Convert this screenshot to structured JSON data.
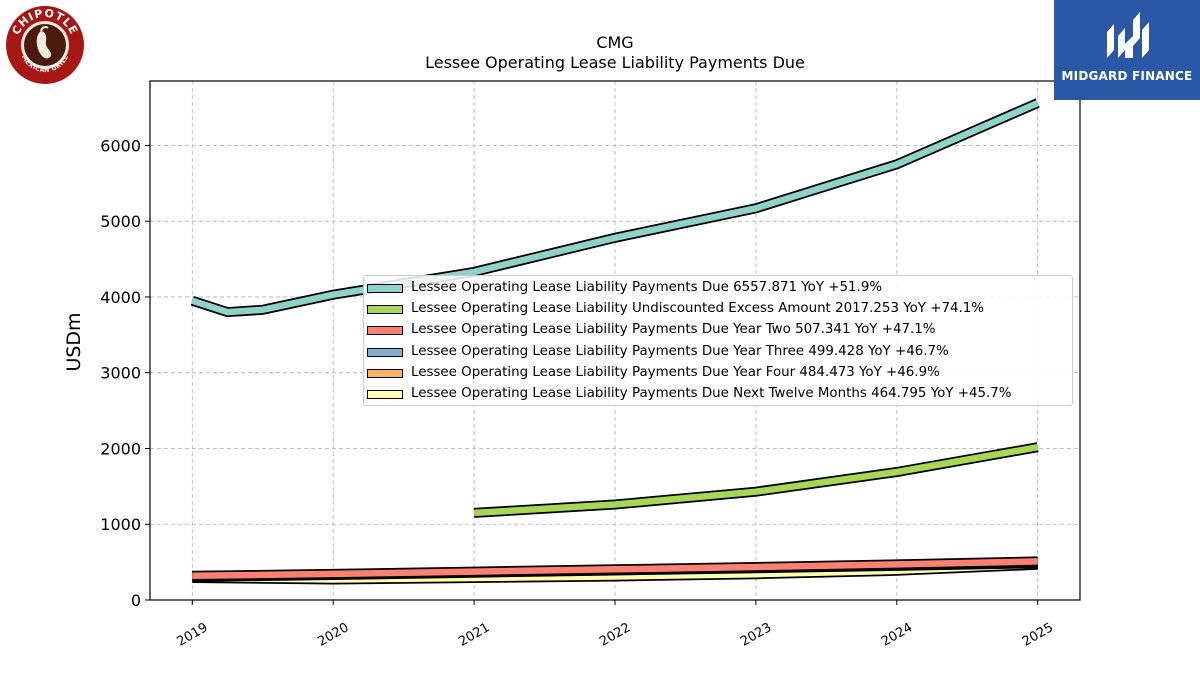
{
  "chart_data": {
    "type": "line",
    "title": "CMG",
    "subtitle": "Lessee Operating Lease Liability Payments Due",
    "ylabel": "USDm",
    "xlabel": "",
    "ylim": [
      0,
      6850
    ],
    "xlim": [
      2018.7,
      2025.3
    ],
    "yticks": [
      0,
      1000,
      2000,
      3000,
      4000,
      5000,
      6000
    ],
    "xticks": [
      "2019",
      "2020",
      "2021",
      "2022",
      "2023",
      "2024",
      "2025"
    ],
    "grid": true,
    "legend_position": "center-right",
    "series": [
      {
        "name": "Lessee Operating Lease Liability Payments Due",
        "legend_label": "Lessee Operating Lease Liability Payments Due  6557.871 YoY +51.9%",
        "color": "#8dd3c7",
        "x": [
          2019.0,
          2019.25,
          2019.5,
          2020.0,
          2021.0,
          2022.0,
          2023.0,
          2024.0,
          2025.0
        ],
        "y": [
          3950,
          3800,
          3830,
          4030,
          4330,
          4780,
          5170,
          5750,
          6560
        ]
      },
      {
        "name": "Lessee Operating Lease Liability Undiscounted Excess Amount",
        "legend_label": "Lessee Operating Lease Liability Undiscounted Excess Amount  2017.253 YoY +74.1%",
        "color": "#a6d854",
        "x": [
          2021.0,
          2022.0,
          2023.0,
          2024.0,
          2025.0
        ],
        "y": [
          1150,
          1260,
          1430,
          1690,
          2017
        ]
      },
      {
        "name": "Lessee Operating Lease Liability Payments Due Year Two",
        "legend_label": "Lessee Operating Lease Liability Payments Due Year Two  507.341 YoY +47.1%",
        "color": "#fb8072",
        "x": [
          2019.0,
          2020.0,
          2021.0,
          2022.0,
          2023.0,
          2024.0,
          2025.0
        ],
        "y": [
          320,
          345,
          375,
          405,
          435,
          470,
          510
        ]
      },
      {
        "name": "Lessee Operating Lease Liability Payments Due Year Three",
        "legend_label": "Lessee Operating Lease Liability Payments Due Year Three  499.428 YoY +46.7%",
        "color": "#80b1d3",
        "x": [
          2019.0,
          2020.0,
          2021.0,
          2022.0,
          2023.0,
          2024.0,
          2025.0
        ],
        "y": [
          315,
          340,
          370,
          400,
          430,
          465,
          500
        ]
      },
      {
        "name": "Lessee Operating Lease Liability Payments Due Year Four",
        "legend_label": "Lessee Operating Lease Liability Payments Due Year Four  484.473 YoY +46.9%",
        "color": "#fdb462",
        "x": [
          2019.0,
          2020.0,
          2021.0,
          2022.0,
          2023.0,
          2024.0,
          2025.0
        ],
        "y": [
          305,
          330,
          360,
          390,
          420,
          450,
          485
        ]
      },
      {
        "name": "Lessee Operating Lease Liability Payments Due Next Twelve Months",
        "legend_label": "Lessee Operating Lease Liability Payments Due Next Twelve Months  464.795 YoY +45.7%",
        "color": "#ffffb3",
        "x": [
          2019.0,
          2020.0,
          2021.0,
          2022.0,
          2023.0,
          2024.0,
          2025.0
        ],
        "y": [
          290,
          270,
          290,
          310,
          340,
          385,
          465
        ]
      }
    ]
  },
  "logos": {
    "left": {
      "name": "Chipotle Mexican Grill",
      "text_top": "CHIPOTLE",
      "text_bottom": "MEXICAN GRILL",
      "color": "#a81612"
    },
    "right": {
      "name": "Midgard Finance",
      "text": "MIDGARD FINANCE",
      "color": "#2b58a6"
    }
  }
}
